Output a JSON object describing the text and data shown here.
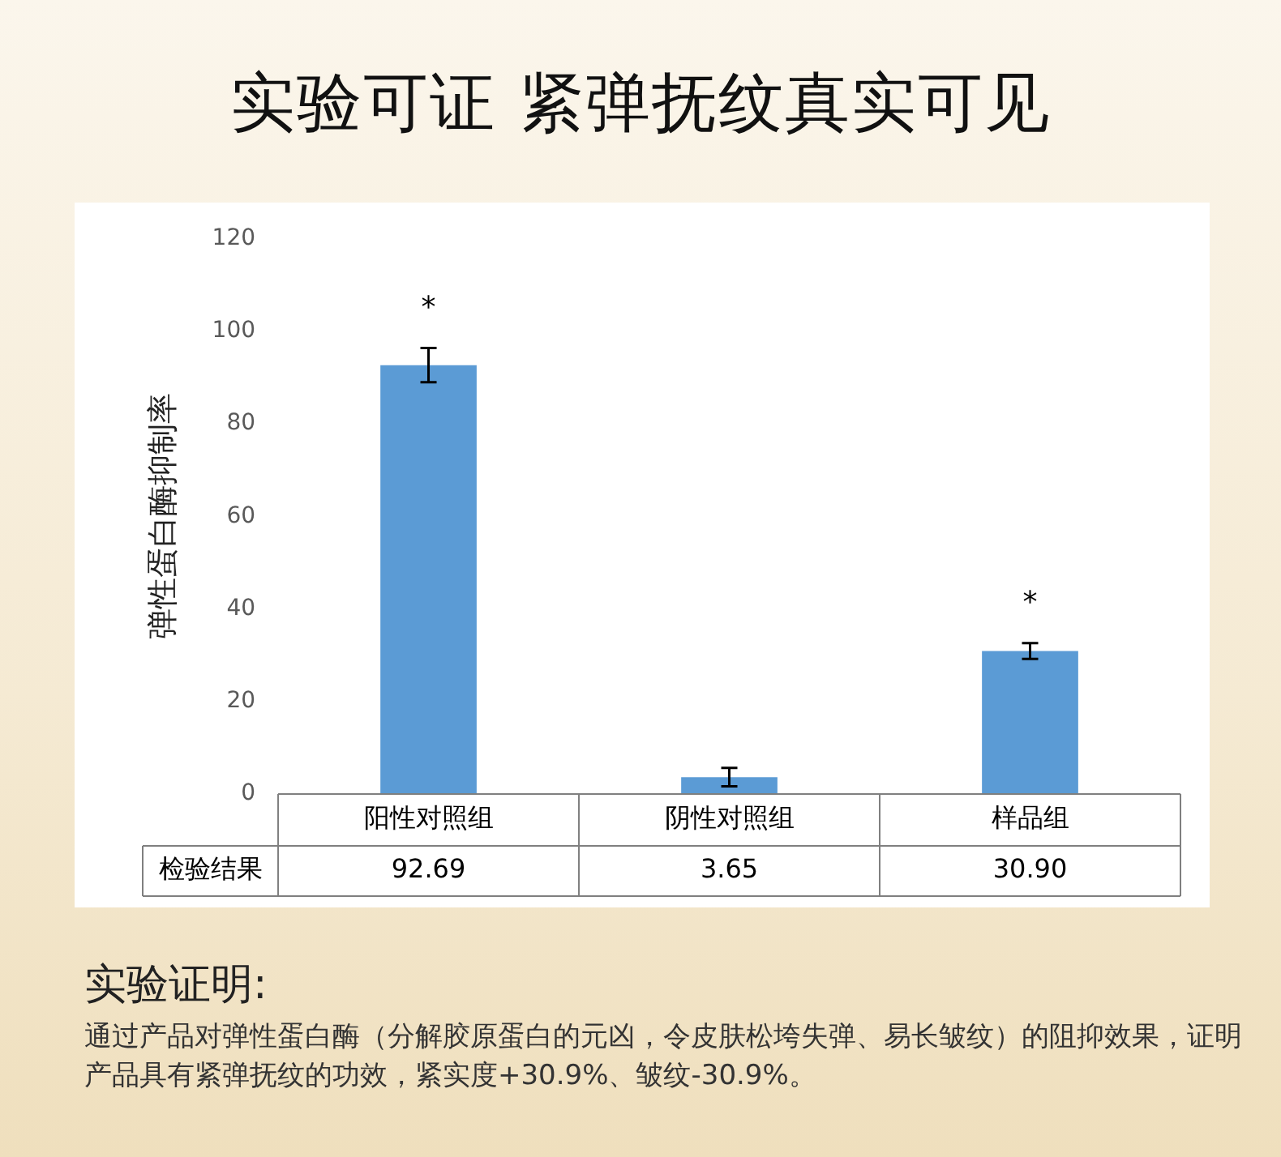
{
  "chart_data": {
    "type": "bar",
    "title": "实验可证 紧弹抚纹真实可见",
    "ylabel": "弹性蛋白酶抑制率",
    "categories": [
      "阳性对照组",
      "阴性对照组",
      "样品组"
    ],
    "values": [
      92.69,
      3.65,
      30.9
    ],
    "color": "#5b9bd5",
    "errors": [
      3.7,
      2.0,
      1.7
    ],
    "value_labels": [
      "92.69",
      "3.65",
      "30.90"
    ],
    "ylim": [
      0,
      120
    ],
    "yticks": [
      0,
      20,
      40,
      60,
      80,
      100,
      120
    ],
    "grid": false,
    "legend": false,
    "annotations": [
      {
        "text": "*",
        "x": "阳性对照组",
        "y": 92.69
      },
      {
        "text": "*",
        "x": "样品组",
        "y": 30.9
      },
      "检验结果",
      "实验证明:",
      "通过产品对弹性蛋白酶（分解胶原蛋白的元凶，令皮肤松垮失弹、易长皱纹）的阻抑效果，证明产品具有紧弹抚纹的功效，紧实度+30.9%、皱纹-30.9%。"
    ]
  }
}
